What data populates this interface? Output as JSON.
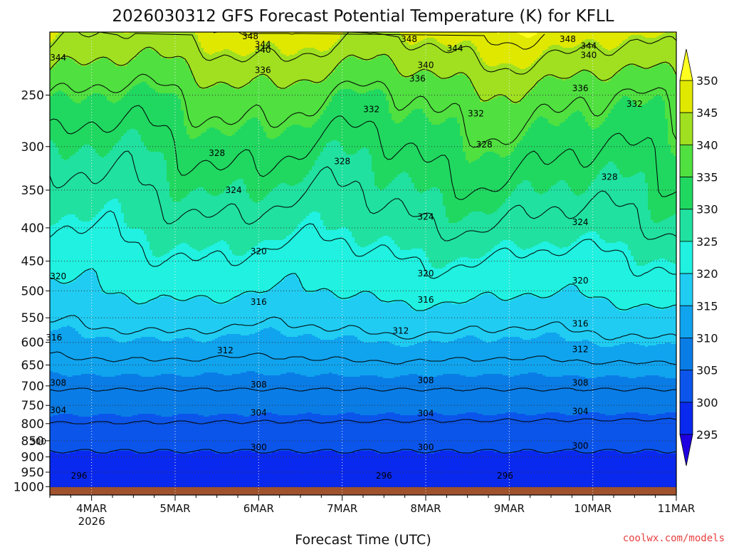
{
  "chart_data": {
    "type": "heatmap",
    "title": "2026030312 GFS Forecast Potential Temperature (K) for KFLL",
    "xlabel": "Forecast Time (UTC)",
    "ylabel": "",
    "x_ticks": [
      {
        "label": "4MAR",
        "sublabel": "2026",
        "day": 4
      },
      {
        "label": "5MAR",
        "sublabel": "",
        "day": 5
      },
      {
        "label": "6MAR",
        "sublabel": "",
        "day": 6
      },
      {
        "label": "7MAR",
        "sublabel": "",
        "day": 7
      },
      {
        "label": "8MAR",
        "sublabel": "",
        "day": 8
      },
      {
        "label": "9MAR",
        "sublabel": "",
        "day": 9
      },
      {
        "label": "10MAR",
        "sublabel": "",
        "day": 10
      },
      {
        "label": "11MAR",
        "sublabel": "",
        "day": 11
      }
    ],
    "xlim": [
      3.5,
      11.0
    ],
    "y_ticks": [
      250,
      300,
      350,
      400,
      450,
      500,
      550,
      600,
      650,
      700,
      750,
      800,
      850,
      900,
      950,
      1000
    ],
    "ylim": [
      1030,
      200
    ],
    "y_scale": "log",
    "colorbar": {
      "levels": [
        295,
        300,
        305,
        310,
        315,
        320,
        325,
        330,
        335,
        340,
        345,
        350
      ],
      "labels": [
        "350",
        "345",
        "340",
        "335",
        "330",
        "325",
        "320",
        "315",
        "310",
        "305",
        "300",
        "295"
      ],
      "colors": [
        "#1f00e0",
        "#0a29ee",
        "#0b55eb",
        "#0a7ce6",
        "#10a3ee",
        "#20ccf2",
        "#20f1e0",
        "#20e1a0",
        "#20d860",
        "#50e040",
        "#a0e020",
        "#e0e800",
        "#ffff20"
      ],
      "extend": "both"
    },
    "profile": {
      "pressure": [
        1000,
        950,
        900,
        850,
        800,
        750,
        700,
        650,
        600,
        550,
        500,
        450,
        400,
        350,
        300,
        250,
        200
      ],
      "theta_day4": [
        297.5,
        298.5,
        299.5,
        301,
        304,
        306,
        308.5,
        311,
        314,
        317,
        320,
        322.5,
        325,
        328,
        331,
        336,
        345
      ],
      "theta_day11": [
        297,
        298,
        299.5,
        301,
        303.5,
        306,
        308.5,
        311.5,
        315,
        318,
        321.5,
        324,
        328,
        331,
        334,
        338,
        348
      ]
    },
    "contour_levels": [
      296,
      300,
      304,
      308,
      312,
      316,
      320,
      324,
      328,
      332,
      336,
      340,
      344,
      348
    ],
    "contour_labels": [
      {
        "text": "296",
        "day": 3.85,
        "p": 962
      },
      {
        "text": "296",
        "day": 7.5,
        "p": 962
      },
      {
        "text": "296",
        "day": 8.95,
        "p": 962
      },
      {
        "text": "300",
        "day": 3.36,
        "p": 852
      },
      {
        "text": "300",
        "day": 6.0,
        "p": 870
      },
      {
        "text": "300",
        "day": 8.0,
        "p": 870
      },
      {
        "text": "300",
        "day": 9.85,
        "p": 865
      },
      {
        "text": "304",
        "day": 3.6,
        "p": 763
      },
      {
        "text": "304",
        "day": 6.0,
        "p": 770
      },
      {
        "text": "304",
        "day": 8.0,
        "p": 772
      },
      {
        "text": "304",
        "day": 9.85,
        "p": 766
      },
      {
        "text": "308",
        "day": 3.6,
        "p": 692
      },
      {
        "text": "308",
        "day": 6.0,
        "p": 697
      },
      {
        "text": "308",
        "day": 8.0,
        "p": 686
      },
      {
        "text": "308",
        "day": 9.85,
        "p": 692
      },
      {
        "text": "312",
        "day": 5.6,
        "p": 617
      },
      {
        "text": "312",
        "day": 7.7,
        "p": 576
      },
      {
        "text": "312",
        "day": 9.85,
        "p": 615
      },
      {
        "text": "316",
        "day": 3.55,
        "p": 590
      },
      {
        "text": "316",
        "day": 6.0,
        "p": 520
      },
      {
        "text": "316",
        "day": 8.0,
        "p": 516
      },
      {
        "text": "316",
        "day": 9.85,
        "p": 562
      },
      {
        "text": "320",
        "day": 3.6,
        "p": 475
      },
      {
        "text": "320",
        "day": 6.0,
        "p": 435
      },
      {
        "text": "320",
        "day": 8.0,
        "p": 470
      },
      {
        "text": "320",
        "day": 9.85,
        "p": 482
      },
      {
        "text": "324",
        "day": 5.7,
        "p": 350
      },
      {
        "text": "324",
        "day": 8.0,
        "p": 385
      },
      {
        "text": "324",
        "day": 9.85,
        "p": 392
      },
      {
        "text": "328",
        "day": 5.5,
        "p": 307
      },
      {
        "text": "328",
        "day": 7.0,
        "p": 316
      },
      {
        "text": "328",
        "day": 8.7,
        "p": 298
      },
      {
        "text": "328",
        "day": 10.2,
        "p": 334
      },
      {
        "text": "332",
        "day": 7.35,
        "p": 263
      },
      {
        "text": "332",
        "day": 8.6,
        "p": 267
      },
      {
        "text": "332",
        "day": 10.5,
        "p": 258
      },
      {
        "text": "336",
        "day": 6.05,
        "p": 229
      },
      {
        "text": "336",
        "day": 7.9,
        "p": 236
      },
      {
        "text": "336",
        "day": 9.85,
        "p": 244
      },
      {
        "text": "340",
        "day": 6.05,
        "p": 213
      },
      {
        "text": "340",
        "day": 8.0,
        "p": 225
      },
      {
        "text": "340",
        "day": 9.95,
        "p": 217
      },
      {
        "text": "344",
        "day": 3.6,
        "p": 219
      },
      {
        "text": "344",
        "day": 6.05,
        "p": 209
      },
      {
        "text": "344",
        "day": 8.35,
        "p": 212
      },
      {
        "text": "344",
        "day": 9.95,
        "p": 210
      },
      {
        "text": "348",
        "day": 5.9,
        "p": 203
      },
      {
        "text": "348",
        "day": 7.8,
        "p": 205
      },
      {
        "text": "348",
        "day": 9.7,
        "p": 205
      }
    ],
    "surface_color": "#a0522d",
    "grid": true
  },
  "credit": {
    "text": "coolwx.com/models",
    "color": "#e84040"
  }
}
